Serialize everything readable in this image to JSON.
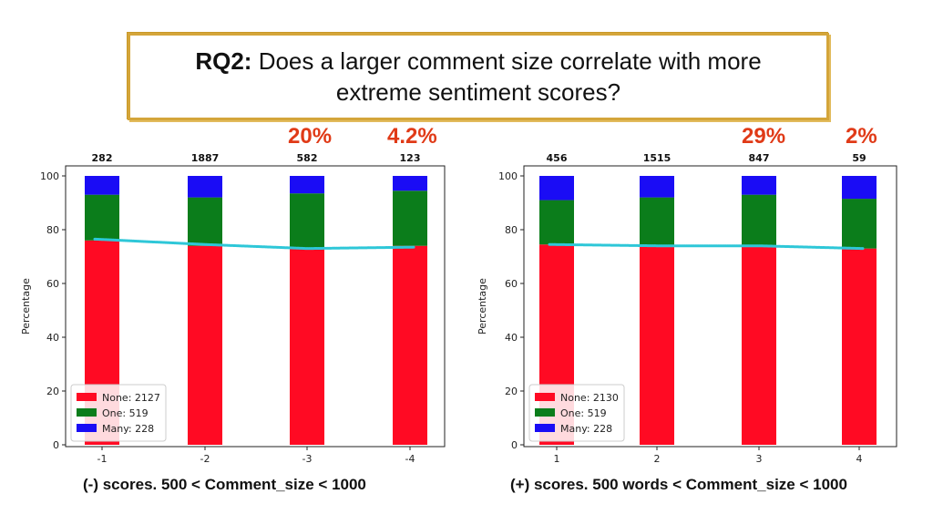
{
  "title": {
    "bold": "RQ2:",
    "line1": "Does a larger comment size correlate with more",
    "line2": "extreme sentiment scores?"
  },
  "colors": {
    "none": "#ff0a23",
    "one": "#0b7d1b",
    "many": "#1a0cf5",
    "trend": "#2ec7d8",
    "callout": "#e03a17"
  },
  "chart_data": [
    {
      "type": "bar",
      "stacked": true,
      "categories": [
        "-1",
        "-2",
        "-3",
        "-4"
      ],
      "ylabel": "Percentage",
      "ylim": [
        0,
        100
      ],
      "yticks": [
        0,
        20,
        40,
        60,
        80,
        100
      ],
      "top_labels": [
        "282",
        "1887",
        "582",
        "123"
      ],
      "series": [
        {
          "name": "None: 2127",
          "color": "#ff0a23",
          "values": [
            76,
            74,
            73,
            74
          ]
        },
        {
          "name": "One: 519",
          "color": "#0b7d1b",
          "values": [
            17,
            18,
            20.5,
            20.5
          ]
        },
        {
          "name": "Many: 228",
          "color": "#1a0cf5",
          "values": [
            7,
            8,
            6.5,
            5.5
          ]
        }
      ],
      "trend": [
        76.5,
        74.5,
        73,
        73.5
      ],
      "callouts": [
        {
          "category": "-3",
          "text": "20%"
        },
        {
          "category": "-4",
          "text": "4.2%"
        }
      ],
      "caption": "(-) scores. 500 < Comment_size < 1000",
      "legend": "bottom-left"
    },
    {
      "type": "bar",
      "stacked": true,
      "categories": [
        "1",
        "2",
        "3",
        "4"
      ],
      "ylabel": "Percentage",
      "ylim": [
        0,
        100
      ],
      "yticks": [
        0,
        20,
        40,
        60,
        80,
        100
      ],
      "top_labels": [
        "456",
        "1515",
        "847",
        "59"
      ],
      "series": [
        {
          "name": "None: 2130",
          "color": "#ff0a23",
          "values": [
            74.5,
            74,
            74,
            73
          ]
        },
        {
          "name": "One: 519",
          "color": "#0b7d1b",
          "values": [
            16.5,
            18,
            19,
            18.5
          ]
        },
        {
          "name": "Many: 228",
          "color": "#1a0cf5",
          "values": [
            9,
            8,
            7,
            8.5
          ]
        }
      ],
      "trend": [
        74.5,
        74,
        74,
        73
      ],
      "callouts": [
        {
          "category": "3",
          "text": "29%"
        },
        {
          "category": "4",
          "text": "2%"
        }
      ],
      "caption": "(+) scores. 500 words < Comment_size < 1000",
      "legend": "bottom-left"
    }
  ]
}
